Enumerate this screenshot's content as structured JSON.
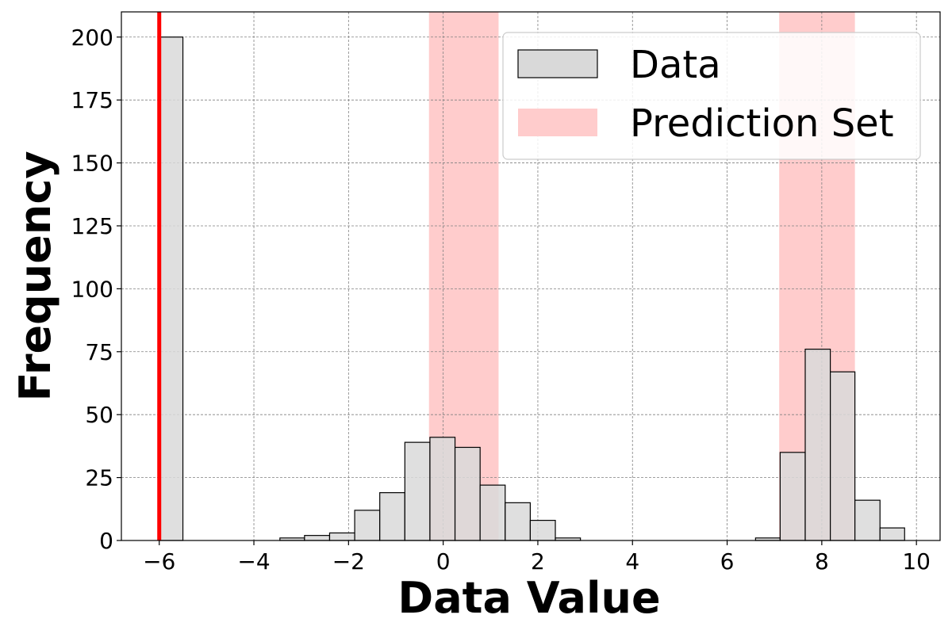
{
  "chart_data": {
    "type": "bar",
    "xlabel": "Data Value",
    "ylabel": "Frequency",
    "xlim": [
      -6.8,
      10.5
    ],
    "ylim": [
      0,
      210
    ],
    "xticks": [
      {
        "value": -6,
        "label": "−6"
      },
      {
        "value": -4,
        "label": "−4"
      },
      {
        "value": -2,
        "label": "−2"
      },
      {
        "value": 0,
        "label": "0"
      },
      {
        "value": 2,
        "label": "2"
      },
      {
        "value": 4,
        "label": "4"
      },
      {
        "value": 6,
        "label": "6"
      },
      {
        "value": 8,
        "label": "8"
      },
      {
        "value": 10,
        "label": "10"
      }
    ],
    "yticks": [
      {
        "value": 0,
        "label": "0"
      },
      {
        "value": 25,
        "label": "25"
      },
      {
        "value": 50,
        "label": "50"
      },
      {
        "value": 75,
        "label": "75"
      },
      {
        "value": 100,
        "label": "100"
      },
      {
        "value": 125,
        "label": "125"
      },
      {
        "value": 150,
        "label": "150"
      },
      {
        "value": 175,
        "label": "175"
      },
      {
        "value": 200,
        "label": "200"
      }
    ],
    "grid": true,
    "legend_position": "top-right",
    "series": [
      {
        "name": "Data",
        "color": "#d9d9d9",
        "edge_color": "#000000",
        "bins": [
          {
            "x0": -6.0,
            "x1": -5.5,
            "count": 200
          },
          {
            "x0": -3.45,
            "x1": -2.93,
            "count": 1
          },
          {
            "x0": -2.93,
            "x1": -2.4,
            "count": 2
          },
          {
            "x0": -2.4,
            "x1": -1.87,
            "count": 3
          },
          {
            "x0": -1.87,
            "x1": -1.34,
            "count": 12
          },
          {
            "x0": -1.34,
            "x1": -0.81,
            "count": 19
          },
          {
            "x0": -0.81,
            "x1": -0.28,
            "count": 39
          },
          {
            "x0": -0.28,
            "x1": 0.25,
            "count": 41
          },
          {
            "x0": 0.25,
            "x1": 0.78,
            "count": 37
          },
          {
            "x0": 0.78,
            "x1": 1.31,
            "count": 22
          },
          {
            "x0": 1.31,
            "x1": 1.84,
            "count": 15
          },
          {
            "x0": 1.84,
            "x1": 2.37,
            "count": 8
          },
          {
            "x0": 2.37,
            "x1": 2.9,
            "count": 1
          },
          {
            "x0": 6.6,
            "x1": 7.12,
            "count": 1
          },
          {
            "x0": 7.12,
            "x1": 7.65,
            "count": 35
          },
          {
            "x0": 7.65,
            "x1": 8.18,
            "count": 76
          },
          {
            "x0": 8.18,
            "x1": 8.7,
            "count": 67
          },
          {
            "x0": 8.7,
            "x1": 9.23,
            "count": 16
          },
          {
            "x0": 9.23,
            "x1": 9.75,
            "count": 5
          }
        ]
      }
    ],
    "prediction_set": {
      "name": "Prediction Set",
      "color": "#ffcccc",
      "intervals": [
        [
          -0.3,
          1.17
        ],
        [
          7.1,
          8.7
        ]
      ]
    },
    "reference_line": {
      "x": -6.0,
      "color": "#ff0000"
    }
  }
}
